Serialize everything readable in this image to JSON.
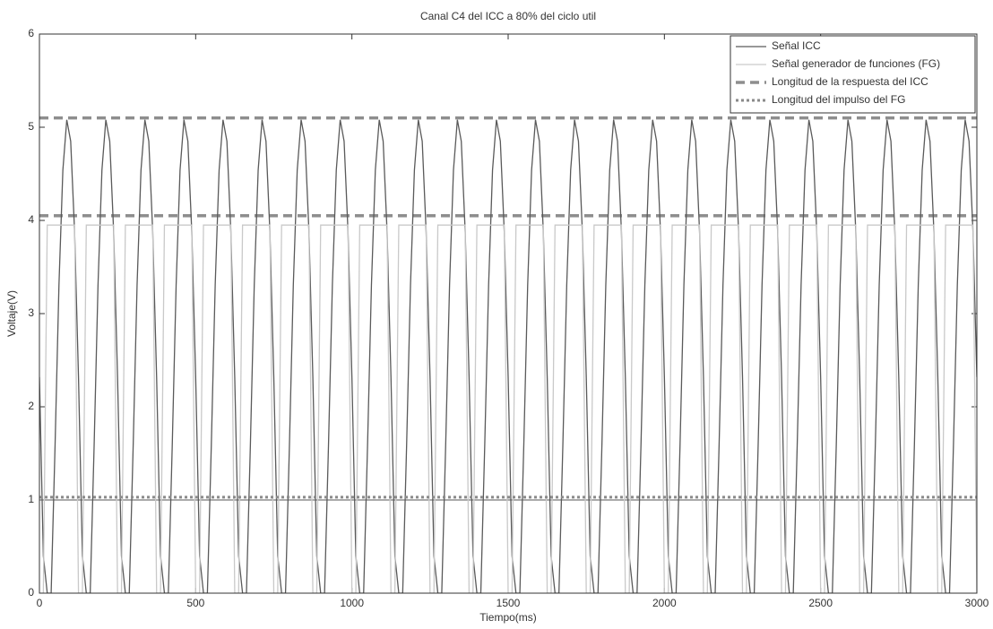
{
  "chart_data": {
    "type": "line",
    "title": "Canal C4 del ICC a 80% del ciclo util",
    "xlabel": "Tiempo(ms)",
    "ylabel": "Voltaje(V)",
    "xlim": [
      0,
      3000
    ],
    "ylim": [
      0,
      6
    ],
    "xticks": [
      0,
      500,
      1000,
      1500,
      2000,
      2500,
      3000
    ],
    "yticks": [
      0,
      1,
      2,
      3,
      4,
      5,
      6
    ],
    "grid": false,
    "legend": "upper right",
    "x": [
      0,
      12.5,
      25,
      37.5,
      50,
      62.5,
      75,
      87.5,
      100,
      112.5,
      125,
      137.5,
      150,
      162.5,
      175,
      187.5,
      200,
      212.5,
      225,
      237.5,
      250,
      262.5,
      275,
      287.5,
      300,
      312.5,
      325,
      337.5,
      350,
      362.5,
      375,
      387.5,
      400,
      412.5,
      425,
      437.5,
      450,
      462.5,
      475,
      487.5,
      500,
      512.5,
      525,
      537.5,
      550,
      562.5,
      575,
      587.5,
      600,
      612.5,
      625,
      637.5,
      650,
      662.5,
      675,
      687.5,
      700,
      712.5,
      725,
      737.5,
      750,
      762.5,
      775,
      787.5,
      800,
      812.5,
      825,
      837.5,
      850,
      862.5,
      875,
      887.5,
      900,
      912.5,
      925,
      937.5,
      950,
      962.5,
      975,
      987.5,
      1000,
      1012.5,
      1025,
      1037.5,
      1050,
      1062.5,
      1075,
      1087.5,
      1100,
      1112.5,
      1125,
      1137.5,
      1150,
      1162.5,
      1175,
      1187.5,
      1200,
      1212.5,
      1225,
      1237.5,
      1250,
      1262.5,
      1275,
      1287.5,
      1300,
      1312.5,
      1325,
      1337.5,
      1350,
      1362.5,
      1375,
      1387.5,
      1400,
      1412.5,
      1425,
      1437.5,
      1450,
      1462.5,
      1475,
      1487.5,
      1500,
      1512.5,
      1525,
      1537.5,
      1550,
      1562.5,
      1575,
      1587.5,
      1600,
      1612.5,
      1625,
      1637.5,
      1650,
      1662.5,
      1675,
      1687.5,
      1700,
      1712.5,
      1725,
      1737.5,
      1750,
      1762.5,
      1775,
      1787.5,
      1800,
      1812.5,
      1825,
      1837.5,
      1850,
      1862.5,
      1875,
      1887.5,
      1900,
      1912.5,
      1925,
      1937.5,
      1950,
      1962.5,
      1975,
      1987.5,
      2000,
      2012.5,
      2025,
      2037.5,
      2050,
      2062.5,
      2075,
      2087.5,
      2100,
      2112.5,
      2125,
      2137.5,
      2150,
      2162.5,
      2175,
      2187.5,
      2200,
      2212.5,
      2225,
      2237.5,
      2250,
      2262.5,
      2275,
      2287.5,
      2300,
      2312.5,
      2325,
      2337.5,
      2350,
      2362.5,
      2375,
      2387.5,
      2400,
      2412.5,
      2425,
      2437.5,
      2450,
      2462.5,
      2475,
      2487.5,
      2500,
      2512.5,
      2525,
      2537.5,
      2550,
      2562.5,
      2575,
      2587.5,
      2600,
      2612.5,
      2625,
      2637.5,
      2650,
      2662.5,
      2675,
      2687.5,
      2700,
      2712.5,
      2725,
      2737.5,
      2750,
      2762.5,
      2775,
      2787.5,
      2800,
      2812.5,
      2825,
      2837.5,
      2850,
      2862.5,
      2875,
      2887.5,
      2900,
      2912.5,
      2925,
      2937.5,
      2950,
      2962.5,
      2975,
      2987.5,
      3000
    ],
    "series": [
      {
        "name": "Señal ICC",
        "color": "#5a5a5a",
        "width": 1.3,
        "dash": "none",
        "values": [
          2.32,
          0.4,
          0,
          0,
          1.58,
          3.31,
          4.54,
          5.08,
          4.85,
          3.88,
          2.32,
          0.4,
          0,
          0,
          1.58,
          3.31,
          4.54,
          5.08,
          4.85,
          3.88,
          2.32,
          0.4,
          0,
          0,
          1.58,
          3.31,
          4.54,
          5.08,
          4.85,
          3.88,
          2.32,
          0.4,
          0,
          0,
          1.58,
          3.31,
          4.54,
          5.08,
          4.85,
          3.88,
          2.32,
          0.4,
          0,
          0,
          1.58,
          3.31,
          4.54,
          5.08,
          4.85,
          3.88,
          2.32,
          0.4,
          0,
          0,
          1.58,
          3.31,
          4.54,
          5.08,
          4.85,
          3.88,
          2.32,
          0.4,
          0,
          0,
          1.58,
          3.31,
          4.54,
          5.08,
          4.85,
          3.88,
          2.32,
          0.4,
          0,
          0,
          1.58,
          3.31,
          4.54,
          5.08,
          4.85,
          3.88,
          2.32,
          0.4,
          0,
          0,
          1.58,
          3.31,
          4.54,
          5.08,
          4.85,
          3.88,
          2.32,
          0.4,
          0,
          0,
          1.58,
          3.31,
          4.54,
          5.08,
          4.85,
          3.88,
          2.32,
          0.4,
          0,
          0,
          1.58,
          3.31,
          4.54,
          5.08,
          4.85,
          3.88,
          2.32,
          0.4,
          0,
          0,
          1.58,
          3.31,
          4.54,
          5.08,
          4.85,
          3.88,
          2.32,
          0.4,
          0,
          0,
          1.58,
          3.31,
          4.54,
          5.08,
          4.85,
          3.88,
          2.32,
          0.4,
          0,
          0,
          1.58,
          3.31,
          4.54,
          5.08,
          4.85,
          3.88,
          2.32,
          0.4,
          0,
          0,
          1.58,
          3.31,
          4.54,
          5.08,
          4.85,
          3.88,
          2.32,
          0.4,
          0,
          0,
          1.58,
          3.31,
          4.54,
          5.08,
          4.85,
          3.88,
          2.32,
          0.4,
          0,
          0,
          1.58,
          3.31,
          4.54,
          5.08,
          4.85,
          3.88,
          2.32,
          0.4,
          0,
          0,
          1.58,
          3.31,
          4.54,
          5.08,
          4.85,
          3.88,
          2.32,
          0.4,
          0,
          0,
          1.58,
          3.31,
          4.54,
          5.08,
          4.85,
          3.88,
          2.32,
          0.4,
          0,
          0,
          1.58,
          3.31,
          4.54,
          5.08,
          4.85,
          3.88,
          2.32,
          0.4,
          0,
          0,
          1.58,
          3.31,
          4.54,
          5.08,
          4.85,
          3.88,
          2.32,
          0.4,
          0,
          0,
          1.58,
          3.31,
          4.54,
          5.08,
          4.85,
          3.88,
          2.32,
          0.4,
          0,
          0,
          1.58,
          3.31,
          4.54,
          5.08,
          4.85,
          3.88,
          2.32,
          0.4,
          0,
          0,
          1.58,
          3.31,
          4.54,
          5.08,
          4.85,
          3.88,
          2.32
        ]
      },
      {
        "name": "Señal generador de funciones (FG)",
        "color": "#c9c9c9",
        "width": 1.3,
        "dash": "none",
        "values": [
          0,
          0,
          3.95,
          3.95,
          3.95,
          3.95,
          3.95,
          3.95,
          3.95,
          3.95,
          0,
          0,
          3.95,
          3.95,
          3.95,
          3.95,
          3.95,
          3.95,
          3.95,
          3.95,
          0,
          0,
          3.95,
          3.95,
          3.95,
          3.95,
          3.95,
          3.95,
          3.95,
          3.95,
          0,
          0,
          3.95,
          3.95,
          3.95,
          3.95,
          3.95,
          3.95,
          3.95,
          3.95,
          0,
          0,
          3.95,
          3.95,
          3.95,
          3.95,
          3.95,
          3.95,
          3.95,
          3.95,
          0,
          0,
          3.95,
          3.95,
          3.95,
          3.95,
          3.95,
          3.95,
          3.95,
          3.95,
          0,
          0,
          3.95,
          3.95,
          3.95,
          3.95,
          3.95,
          3.95,
          3.95,
          3.95,
          0,
          0,
          3.95,
          3.95,
          3.95,
          3.95,
          3.95,
          3.95,
          3.95,
          3.95,
          0,
          0,
          3.95,
          3.95,
          3.95,
          3.95,
          3.95,
          3.95,
          3.95,
          3.95,
          0,
          0,
          3.95,
          3.95,
          3.95,
          3.95,
          3.95,
          3.95,
          3.95,
          3.95,
          0,
          0,
          3.95,
          3.95,
          3.95,
          3.95,
          3.95,
          3.95,
          3.95,
          3.95,
          0,
          0,
          3.95,
          3.95,
          3.95,
          3.95,
          3.95,
          3.95,
          3.95,
          3.95,
          0,
          0,
          3.95,
          3.95,
          3.95,
          3.95,
          3.95,
          3.95,
          3.95,
          3.95,
          0,
          0,
          3.95,
          3.95,
          3.95,
          3.95,
          3.95,
          3.95,
          3.95,
          3.95,
          0,
          0,
          3.95,
          3.95,
          3.95,
          3.95,
          3.95,
          3.95,
          3.95,
          3.95,
          0,
          0,
          3.95,
          3.95,
          3.95,
          3.95,
          3.95,
          3.95,
          3.95,
          3.95,
          0,
          0,
          3.95,
          3.95,
          3.95,
          3.95,
          3.95,
          3.95,
          3.95,
          3.95,
          0,
          0,
          3.95,
          3.95,
          3.95,
          3.95,
          3.95,
          3.95,
          3.95,
          3.95,
          0,
          0,
          3.95,
          3.95,
          3.95,
          3.95,
          3.95,
          3.95,
          3.95,
          3.95,
          0,
          0,
          3.95,
          3.95,
          3.95,
          3.95,
          3.95,
          3.95,
          3.95,
          3.95,
          0,
          0,
          3.95,
          3.95,
          3.95,
          3.95,
          3.95,
          3.95,
          3.95,
          3.95,
          0,
          0,
          3.95,
          3.95,
          3.95,
          3.95,
          3.95,
          3.95,
          3.95,
          3.95,
          0,
          0,
          3.95,
          3.95,
          3.95,
          3.95,
          3.95,
          3.95,
          3.95,
          3.95,
          0,
          0,
          3.95,
          3.95,
          3.95,
          3.95,
          3.95,
          3.95,
          3.95,
          3.95,
          0
        ]
      },
      {
        "name": "Longitud de la respuesta del ICC",
        "color": "#8e8e8e",
        "width": 3.5,
        "dash": "10 6",
        "x": [
          0,
          3000
        ],
        "values": [
          5.1,
          5.1
        ]
      },
      {
        "name": "Longitud del impulso del FG",
        "color": "#8a8a8a",
        "width": 3,
        "dash": "3 3",
        "x": [
          0,
          3000
        ],
        "values": [
          1.03,
          1.03
        ]
      }
    ],
    "reference_lines": [
      {
        "y": 4.05,
        "color": "#8e8e8e",
        "width": 3.5,
        "dash": "10 6"
      },
      {
        "y": 1.0,
        "color": "#777777",
        "width": 1.3,
        "dash": "none"
      }
    ]
  }
}
